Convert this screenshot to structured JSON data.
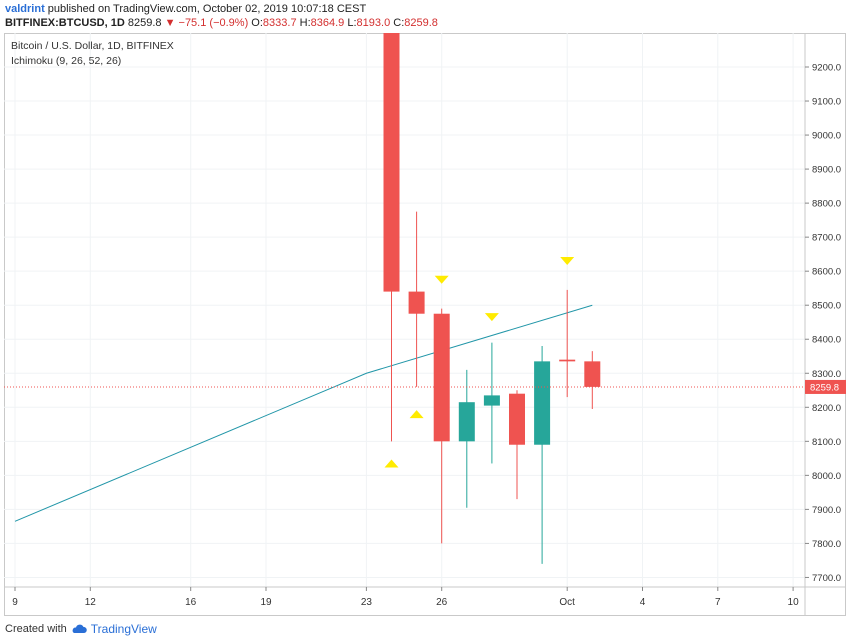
{
  "header": {
    "user": "valdrint",
    "published": "published on TradingView.com, October 02, 2019 10:07:18 CEST",
    "symbol": "BITFINEX:BTCUSD, 1D",
    "price": "8259.8",
    "change_arrow": "▼",
    "change": "−75.1 (−0.9%)",
    "o_label": "O:",
    "o_value": "8333.7",
    "h_label": "H:",
    "h_value": "8364.9",
    "l_label": "L:",
    "l_value": "8193.0",
    "c_label": "C:",
    "c_value": "8259.8"
  },
  "footer": {
    "created_with": "Created with",
    "brand": "TradingView"
  },
  "chart_data": {
    "type": "candlestick",
    "title": "Bitcoin / U.S. Dollar, 1D, BITFINEX",
    "indicator": "Ichimoku (9, 26, 52, 26)",
    "ylim": [
      7650,
      9300
    ],
    "y_ticks": [
      7700,
      7800,
      7900,
      8000,
      8100,
      8200,
      8300,
      8400,
      8500,
      8600,
      8700,
      8800,
      8900,
      9000,
      9100,
      9200
    ],
    "y_tick_labels": [
      "7700.0",
      "7800.0",
      "7900.0",
      "8000.0",
      "8100.0",
      "8200.0",
      "8300.0",
      "8400.0",
      "8500.0",
      "8600.0",
      "8700.0",
      "8800.0",
      "8900.0",
      "9000.0",
      "9100.0",
      "9200.0"
    ],
    "x_ticks": [
      {
        "day": 9,
        "label": "9"
      },
      {
        "day": 12,
        "label": "12"
      },
      {
        "day": 16,
        "label": "16"
      },
      {
        "day": 19,
        "label": "19"
      },
      {
        "day": 23,
        "label": "23"
      },
      {
        "day": 26,
        "label": "26"
      },
      {
        "day": 31,
        "label": "Oct"
      },
      {
        "day": 34,
        "label": "4"
      },
      {
        "day": 37,
        "label": "7"
      },
      {
        "day": 40,
        "label": "10"
      }
    ],
    "x_range": [
      9,
      40
    ],
    "last_price": 8259.8,
    "last_price_label": "8259.8",
    "colors": {
      "up": "#26a69a",
      "down": "#ef5350",
      "line": "#2196a8",
      "marker": "#ffeb00",
      "price_line": "#ef5350"
    },
    "candles": [
      {
        "day": 24,
        "open": 9300,
        "high": 9300,
        "low": 8100,
        "close": 8540
      },
      {
        "day": 25,
        "open": 8540,
        "high": 8775,
        "low": 8260,
        "close": 8475
      },
      {
        "day": 26,
        "open": 8475,
        "high": 8490,
        "low": 7800,
        "close": 8100
      },
      {
        "day": 27,
        "open": 8100,
        "high": 8310,
        "low": 7905,
        "close": 8215
      },
      {
        "day": 28,
        "open": 8205,
        "high": 8390,
        "low": 8035,
        "close": 8235
      },
      {
        "day": 29,
        "open": 8240,
        "high": 8250,
        "low": 7930,
        "close": 8090
      },
      {
        "day": 30,
        "open": 8090,
        "high": 8380,
        "low": 7740,
        "close": 8335
      },
      {
        "day": 31,
        "open": 8340,
        "high": 8545,
        "low": 8230,
        "close": 8335
      },
      {
        "day": 32,
        "open": 8335,
        "high": 8365,
        "low": 8195,
        "close": 8260
      }
    ],
    "line": [
      {
        "day": 9,
        "value": 7865
      },
      {
        "day": 23,
        "value": 8300
      },
      {
        "day": 32,
        "value": 8500
      }
    ],
    "markers": [
      {
        "day": 24,
        "value": 8035,
        "dir": "up"
      },
      {
        "day": 25,
        "value": 8180,
        "dir": "up"
      },
      {
        "day": 26,
        "value": 8575,
        "dir": "down"
      },
      {
        "day": 28,
        "value": 8465,
        "dir": "down"
      },
      {
        "day": 31,
        "value": 8630,
        "dir": "down"
      }
    ]
  }
}
